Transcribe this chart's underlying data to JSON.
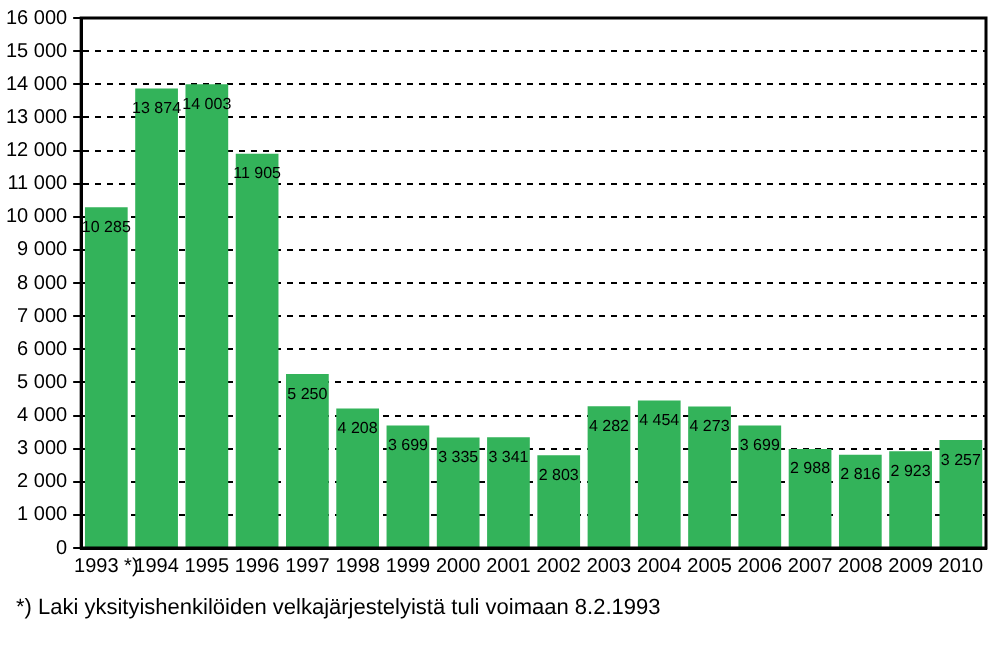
{
  "chart_data": {
    "type": "bar",
    "categories": [
      "1993 *)",
      "1994",
      "1995",
      "1996",
      "1997",
      "1998",
      "1999",
      "2000",
      "2001",
      "2002",
      "2003",
      "2004",
      "2005",
      "2006",
      "2007",
      "2008",
      "2009",
      "2010"
    ],
    "values": [
      10285,
      13874,
      14003,
      11905,
      5250,
      4208,
      3699,
      3335,
      3341,
      2803,
      4282,
      4454,
      4273,
      3699,
      2988,
      2816,
      2923,
      3257
    ],
    "value_labels": [
      "10 285",
      "13 874",
      "14 003",
      "11 905",
      "5 250",
      "4 208",
      "3 699",
      "3 335",
      "3 341",
      "2 803",
      "4 282",
      "4 454",
      "4 273",
      "3 699",
      "2 988",
      "2 816",
      "2 923",
      "3 257"
    ],
    "color": "#33b35a",
    "ylim": [
      0,
      16000
    ],
    "yticks": [
      0,
      {
        "value": 1000,
        "label": "1 000"
      },
      {
        "value": 2000,
        "label": "2 000"
      },
      {
        "value": 3000,
        "label": "3 000"
      },
      {
        "value": 4000,
        "label": "4 000"
      },
      {
        "value": 5000,
        "label": "5 000"
      },
      {
        "value": 6000,
        "label": "6 000"
      },
      {
        "value": 7000,
        "label": "7 000"
      },
      {
        "value": 8000,
        "label": "8 000"
      },
      {
        "value": 9000,
        "label": "9 000"
      },
      {
        "value": 10000,
        "label": "10 000"
      },
      {
        "value": 11000,
        "label": "11 000"
      },
      {
        "value": 12000,
        "label": "12 000"
      },
      {
        "value": 13000,
        "label": "13 000"
      },
      {
        "value": 14000,
        "label": "14 000"
      },
      {
        "value": 15000,
        "label": "15 000"
      },
      {
        "value": 16000,
        "label": "16 000"
      }
    ],
    "grid": "y",
    "legend": false,
    "annotations": [
      "*) Laki yksityishenkilöiden velkajärjestelyistä tuli voimaan 8.2.1993"
    ]
  }
}
